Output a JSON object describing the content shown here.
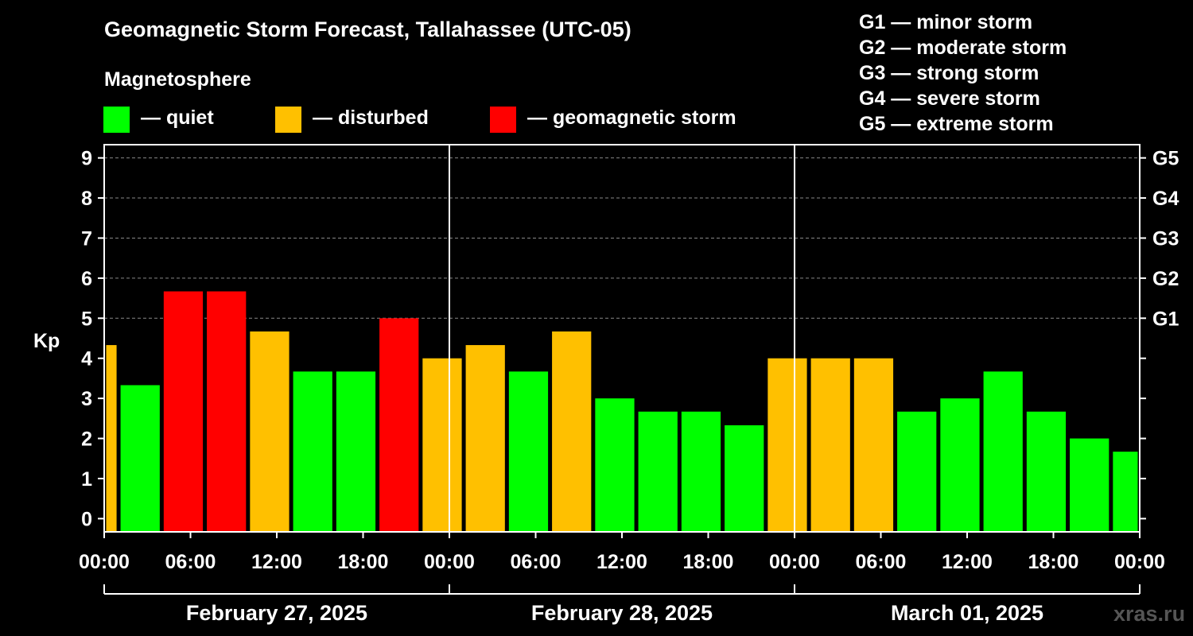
{
  "title": "Geomagnetic Storm Forecast, Tallahassee (UTC-05)",
  "legend": {
    "heading": "Magnetosphere",
    "items": [
      {
        "label": "— quiet",
        "color": "#00ff00"
      },
      {
        "label": "— disturbed",
        "color": "#ffc000"
      },
      {
        "label": "— geomagnetic storm",
        "color": "#ff0000"
      }
    ]
  },
  "g_scale": [
    "G1 — minor storm",
    "G2 — moderate storm",
    "G3 — strong storm",
    "G4 — severe storm",
    "G5 — extreme storm"
  ],
  "watermark": "xras.ru",
  "chart_data": {
    "type": "bar",
    "ylabel": "Kp",
    "ylim": [
      -0.33,
      9.33
    ],
    "yticks": [
      0,
      1,
      2,
      3,
      4,
      5,
      6,
      7,
      8,
      9
    ],
    "right_ticks": [
      {
        "value": 5,
        "label": "G1"
      },
      {
        "value": 6,
        "label": "G2"
      },
      {
        "value": 7,
        "label": "G3"
      },
      {
        "value": 8,
        "label": "G4"
      },
      {
        "value": 9,
        "label": "G5"
      }
    ],
    "grid": "horizontal dashed at 5-9",
    "x_hours_range": [
      0,
      72
    ],
    "xtick_labels": [
      "00:00",
      "06:00",
      "12:00",
      "18:00",
      "00:00",
      "06:00",
      "12:00",
      "18:00",
      "00:00",
      "06:00",
      "12:00",
      "18:00",
      "00:00"
    ],
    "day_separators_hours": [
      24,
      48
    ],
    "days": [
      {
        "label": "February 27, 2025",
        "start": 0,
        "end": 24
      },
      {
        "label": "February 28, 2025",
        "start": 24,
        "end": 48
      },
      {
        "label": "March 01, 2025",
        "start": 48,
        "end": 72
      }
    ],
    "colors": {
      "quiet": "#00ff00",
      "disturbed": "#ffc000",
      "storm": "#ff0000"
    },
    "bars": [
      {
        "start": 0,
        "end": 1,
        "value": 4.33,
        "level": "disturbed"
      },
      {
        "start": 1,
        "end": 4,
        "value": 3.33,
        "level": "quiet"
      },
      {
        "start": 4,
        "end": 7,
        "value": 5.67,
        "level": "storm"
      },
      {
        "start": 7,
        "end": 10,
        "value": 5.67,
        "level": "storm"
      },
      {
        "start": 10,
        "end": 13,
        "value": 4.67,
        "level": "disturbed"
      },
      {
        "start": 13,
        "end": 16,
        "value": 3.67,
        "level": "quiet"
      },
      {
        "start": 16,
        "end": 19,
        "value": 3.67,
        "level": "quiet"
      },
      {
        "start": 19,
        "end": 22,
        "value": 5.0,
        "level": "storm"
      },
      {
        "start": 22,
        "end": 25,
        "value": 4.0,
        "level": "disturbed"
      },
      {
        "start": 25,
        "end": 28,
        "value": 4.33,
        "level": "disturbed"
      },
      {
        "start": 28,
        "end": 31,
        "value": 3.67,
        "level": "quiet"
      },
      {
        "start": 31,
        "end": 34,
        "value": 4.67,
        "level": "disturbed"
      },
      {
        "start": 34,
        "end": 37,
        "value": 3.0,
        "level": "quiet"
      },
      {
        "start": 37,
        "end": 40,
        "value": 2.67,
        "level": "quiet"
      },
      {
        "start": 40,
        "end": 43,
        "value": 2.67,
        "level": "quiet"
      },
      {
        "start": 43,
        "end": 46,
        "value": 2.33,
        "level": "quiet"
      },
      {
        "start": 46,
        "end": 49,
        "value": 4.0,
        "level": "disturbed"
      },
      {
        "start": 49,
        "end": 52,
        "value": 4.0,
        "level": "disturbed"
      },
      {
        "start": 52,
        "end": 55,
        "value": 4.0,
        "level": "disturbed"
      },
      {
        "start": 55,
        "end": 58,
        "value": 2.67,
        "level": "quiet"
      },
      {
        "start": 58,
        "end": 61,
        "value": 3.0,
        "level": "quiet"
      },
      {
        "start": 61,
        "end": 64,
        "value": 3.67,
        "level": "quiet"
      },
      {
        "start": 64,
        "end": 67,
        "value": 2.67,
        "level": "quiet"
      },
      {
        "start": 67,
        "end": 70,
        "value": 2.0,
        "level": "quiet"
      },
      {
        "start": 70,
        "end": 72,
        "value": 1.67,
        "level": "quiet"
      }
    ]
  }
}
